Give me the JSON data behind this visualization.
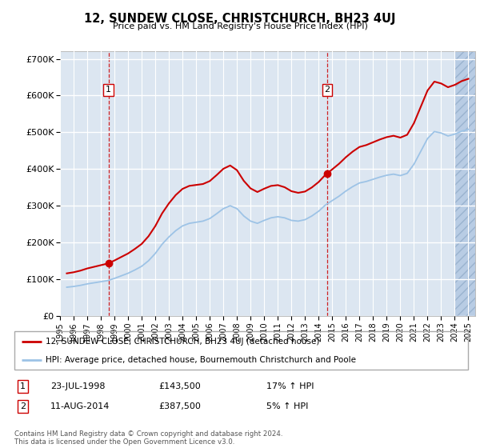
{
  "title": "12, SUNDEW CLOSE, CHRISTCHURCH, BH23 4UJ",
  "subtitle": "Price paid vs. HM Land Registry's House Price Index (HPI)",
  "ylim": [
    0,
    720000
  ],
  "yticks": [
    0,
    100000,
    200000,
    300000,
    400000,
    500000,
    600000,
    700000
  ],
  "ytick_labels": [
    "£0",
    "£100K",
    "£200K",
    "£300K",
    "£400K",
    "£500K",
    "£600K",
    "£700K"
  ],
  "sale1_date": 1998.56,
  "sale1_price": 143500,
  "sale1_label": "1",
  "sale2_date": 2014.62,
  "sale2_price": 387500,
  "sale2_label": "2",
  "legend_line1": "12, SUNDEW CLOSE, CHRISTCHURCH, BH23 4UJ (detached house)",
  "legend_line2": "HPI: Average price, detached house, Bournemouth Christchurch and Poole",
  "table_row1": [
    "1",
    "23-JUL-1998",
    "£143,500",
    "17% ↑ HPI"
  ],
  "table_row2": [
    "2",
    "11-AUG-2014",
    "£387,500",
    "5% ↑ HPI"
  ],
  "footer": "Contains HM Land Registry data © Crown copyright and database right 2024.\nThis data is licensed under the Open Government Licence v3.0.",
  "bg_color": "#dce6f1",
  "hatch_color": "#b8cce4",
  "grid_color": "#ffffff",
  "red_color": "#cc0000",
  "blue_color": "#9dc3e6",
  "xmin": 1995.0,
  "xmax": 2025.5,
  "hatch_start": 2024.0
}
